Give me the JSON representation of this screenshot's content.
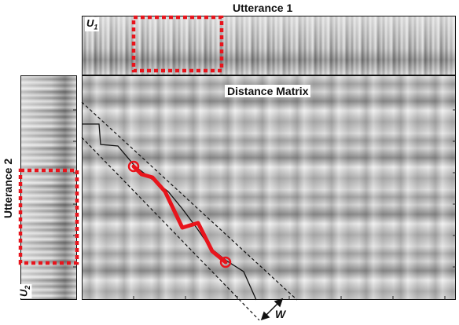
{
  "title_top": "Utterance 1",
  "title_left": "Utterance 2",
  "matrix_label": "Distance Matrix",
  "u1_label": "U",
  "u1_sub": "1",
  "u2_label": "U",
  "u2_sub": "2",
  "window_label": "W",
  "colors": {
    "path": "#e8141c",
    "window_box": "#e8141c",
    "frame": "#111111"
  }
}
